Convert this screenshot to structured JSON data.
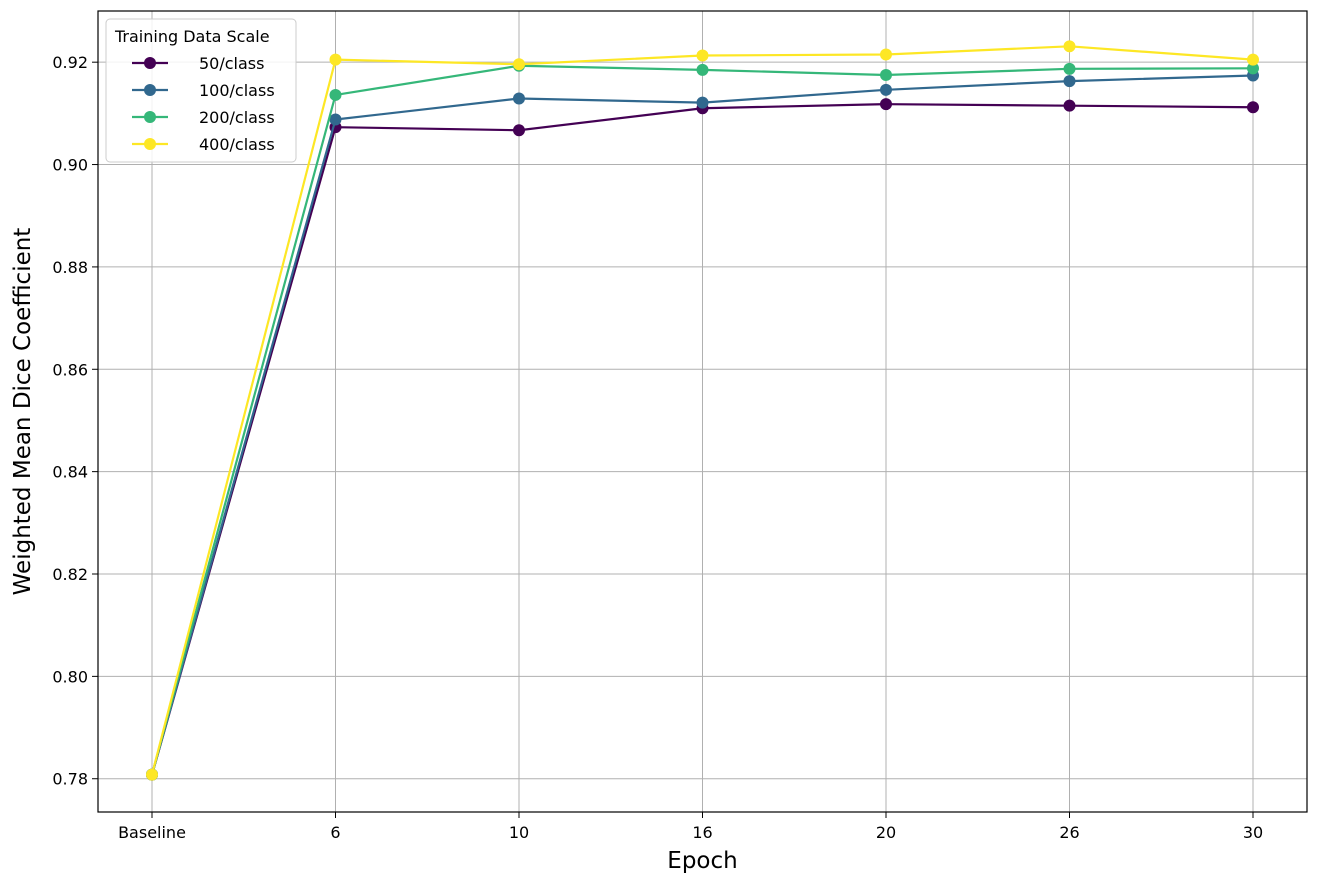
{
  "chart_data": {
    "type": "line",
    "categories": [
      "Baseline",
      "6",
      "10",
      "16",
      "20",
      "26",
      "30"
    ],
    "xlabel": "Epoch",
    "ylabel": "Weighted Mean Dice Coefficient",
    "ylim": [
      0.7735,
      0.93
    ],
    "yticks": [
      "0.78",
      "0.80",
      "0.82",
      "0.84",
      "0.86",
      "0.88",
      "0.90",
      "0.92"
    ],
    "ytick_values": [
      0.78,
      0.8,
      0.82,
      0.84,
      0.86,
      0.88,
      0.9,
      0.92
    ],
    "grid": true,
    "legend": {
      "title": "Training Data Scale",
      "placement": "top-left"
    },
    "series": [
      {
        "name": "50/class",
        "color": "#440154",
        "values": [
          0.7808,
          0.9073,
          0.9067,
          0.911,
          0.9118,
          0.9115,
          0.9112
        ]
      },
      {
        "name": "100/class",
        "color": "#31688e",
        "values": [
          0.7808,
          0.9088,
          0.9129,
          0.9121,
          0.9146,
          0.9163,
          0.9174
        ]
      },
      {
        "name": "200/class",
        "color": "#35b779",
        "values": [
          0.7808,
          0.9136,
          0.9193,
          0.9185,
          0.9175,
          0.9187,
          0.9188
        ]
      },
      {
        "name": "400/class",
        "color": "#fde725",
        "values": [
          0.7808,
          0.9205,
          0.9196,
          0.9213,
          0.9215,
          0.9231,
          0.9205
        ]
      }
    ]
  }
}
